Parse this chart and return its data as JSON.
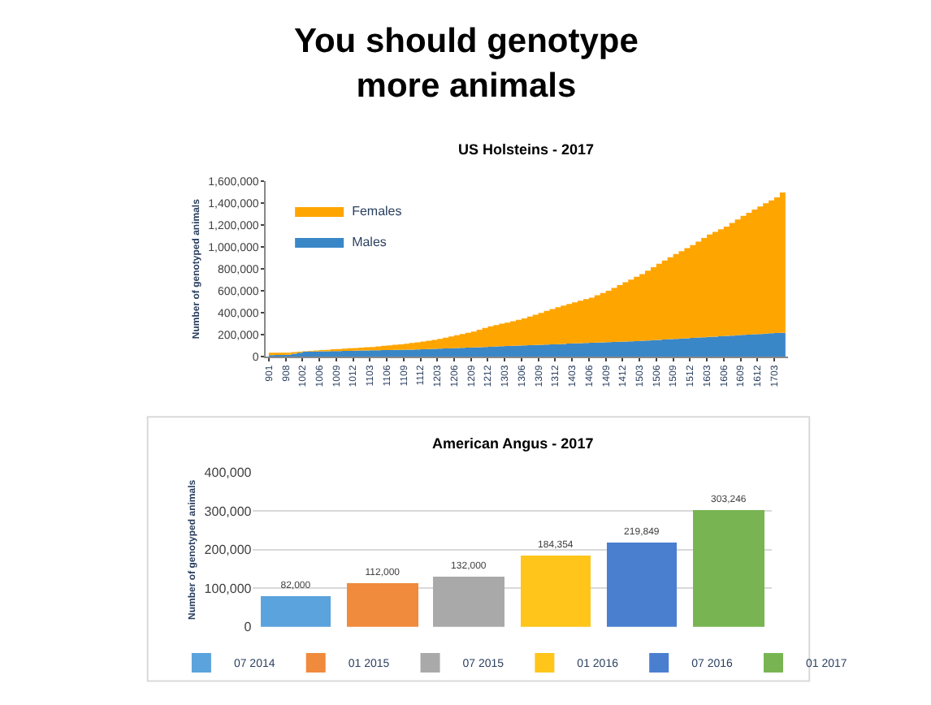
{
  "chart_data": [
    {
      "type": "area",
      "title": "You should genotype more animals",
      "subtitle": "US Holsteins - 2017",
      "ylabel": "Number of genotyped animals",
      "stacked": true,
      "legend": "top left",
      "grid": false,
      "categories": [
        "901",
        null,
        null,
        "908",
        null,
        null,
        "1002",
        null,
        null,
        "1006",
        null,
        null,
        "1009",
        null,
        null,
        "1012",
        null,
        null,
        "1103",
        null,
        null,
        "1106",
        null,
        null,
        "1109",
        null,
        null,
        "1112",
        null,
        null,
        "1203",
        null,
        null,
        "1206",
        null,
        null,
        "1209",
        null,
        null,
        "1212",
        null,
        null,
        "1303",
        null,
        null,
        "1306",
        null,
        null,
        "1309",
        null,
        null,
        "1312",
        null,
        null,
        "1403",
        null,
        null,
        "1406",
        null,
        null,
        "1409",
        null,
        null,
        "1412",
        null,
        null,
        "1503",
        null,
        null,
        "1506",
        null,
        null,
        "1509",
        null,
        null,
        "1512",
        null,
        null,
        "1603",
        null,
        null,
        "1606",
        null,
        null,
        "1609",
        null,
        null,
        "1612",
        null,
        null,
        "1703",
        null,
        null
      ],
      "series": [
        {
          "name": "Males",
          "color": "#3a87c8",
          "values": [
            12000,
            13000,
            14000,
            15000,
            25000,
            35000,
            44000,
            45000,
            46000,
            47000,
            48000,
            49000,
            50000,
            51000,
            52000,
            53000,
            54000,
            55000,
            56000,
            57000,
            58000,
            59000,
            60000,
            61000,
            62000,
            63000,
            64000,
            65000,
            67000,
            69000,
            71000,
            73000,
            75000,
            77000,
            79000,
            81000,
            83000,
            85000,
            87000,
            89000,
            91000,
            93000,
            95000,
            97000,
            99000,
            101000,
            103000,
            105000,
            107000,
            109000,
            111000,
            113000,
            115000,
            117000,
            119000,
            121000,
            123000,
            125000,
            127000,
            129000,
            131000,
            133000,
            135000,
            137000,
            139000,
            141000,
            143000,
            146000,
            149000,
            152000,
            155000,
            158000,
            161000,
            164000,
            167000,
            170000,
            173000,
            176000,
            179000,
            182000,
            185000,
            188000,
            191000,
            194000,
            197000,
            200000,
            203000,
            206000,
            209000,
            212000,
            215000,
            217000,
            219000
          ]
        },
        {
          "name": "Females",
          "color": "#ffa500",
          "values": [
            22000,
            21000,
            20000,
            19000,
            14000,
            8000,
            4000,
            6000,
            9000,
            11000,
            13000,
            16000,
            18000,
            20000,
            23000,
            25000,
            27000,
            29000,
            31000,
            35000,
            39000,
            43000,
            47000,
            50000,
            54000,
            60000,
            65000,
            71000,
            77000,
            83000,
            89000,
            98000,
            108000,
            117000,
            126000,
            136000,
            145000,
            159000,
            173000,
            187000,
            196000,
            206000,
            215000,
            226000,
            237000,
            248000,
            262000,
            277000,
            291000,
            307000,
            322000,
            338000,
            351000,
            363000,
            376000,
            388000,
            401000,
            413000,
            432000,
            451000,
            470000,
            494000,
            518000,
            542000,
            564000,
            587000,
            609000,
            638000,
            667000,
            696000,
            722000,
            749000,
            775000,
            799000,
            824000,
            848000,
            877000,
            907000,
            936000,
            957000,
            979000,
            1000000,
            1029000,
            1059000,
            1088000,
            1114000,
            1140000,
            1166000,
            1191000,
            1215000,
            1240000,
            1283000,
            1323000
          ]
        }
      ],
      "ylim": [
        0,
        1600000
      ],
      "yticks": [
        {
          "value": 0,
          "label": "0"
        },
        {
          "value": 200000,
          "label": "200,000"
        },
        {
          "value": 400000,
          "label": "400,000"
        },
        {
          "value": 600000,
          "label": "600,000"
        },
        {
          "value": 800000,
          "label": "800,000"
        },
        {
          "value": 1000000,
          "label": "1,000,000"
        },
        {
          "value": 1200000,
          "label": "1,200,000"
        },
        {
          "value": 1400000,
          "label": "1,400,000"
        },
        {
          "value": 1600000,
          "label": "1,600,000"
        }
      ]
    },
    {
      "type": "bar",
      "title": "American Angus - 2017",
      "ylabel": "Number of genotyped animals",
      "legend": "bottom",
      "grid": "y",
      "tick_labels": "y",
      "categories": [
        null,
        null,
        null,
        null,
        null,
        null
      ],
      "series": [
        {
          "name": "07 2014",
          "color": "#5ba3dd",
          "values": [
            82000,
            null,
            null,
            null,
            null,
            null
          ],
          "value_labels": [
            "82,000",
            null,
            null,
            null,
            null,
            null
          ]
        },
        {
          "name": "01 2015",
          "color": "#f08a3c",
          "values": [
            null,
            112000,
            null,
            null,
            null,
            null
          ],
          "value_labels": [
            null,
            "112,000",
            null,
            null,
            null,
            null
          ]
        },
        {
          "name": "07 2015",
          "color": "#a9a9a9",
          "values": [
            null,
            null,
            132000,
            null,
            null,
            null
          ],
          "value_labels": [
            null,
            null,
            "132,000",
            null,
            null,
            null
          ]
        },
        {
          "name": "01 2016",
          "color": "#ffc51a",
          "values": [
            null,
            null,
            null,
            184354,
            null,
            null
          ],
          "value_labels": [
            null,
            null,
            null,
            "184,354",
            null,
            null
          ]
        },
        {
          "name": "07 2016",
          "color": "#4a7fd0",
          "values": [
            null,
            null,
            null,
            null,
            219849,
            null
          ],
          "value_labels": [
            null,
            null,
            null,
            null,
            "219,849",
            null
          ]
        },
        {
          "name": "01 2017",
          "color": "#78b552",
          "values": [
            null,
            null,
            null,
            null,
            null,
            303246
          ],
          "value_labels": [
            null,
            null,
            null,
            null,
            null,
            "303,246"
          ]
        }
      ],
      "ylim": [
        0,
        400000
      ],
      "yticks": [
        {
          "value": 0,
          "label": "0"
        },
        {
          "value": 100000,
          "label": "100,000"
        },
        {
          "value": 200000,
          "label": "200,000"
        },
        {
          "value": 300000,
          "label": "300,000"
        },
        {
          "value": 400000,
          "label": "400,000"
        }
      ]
    }
  ]
}
